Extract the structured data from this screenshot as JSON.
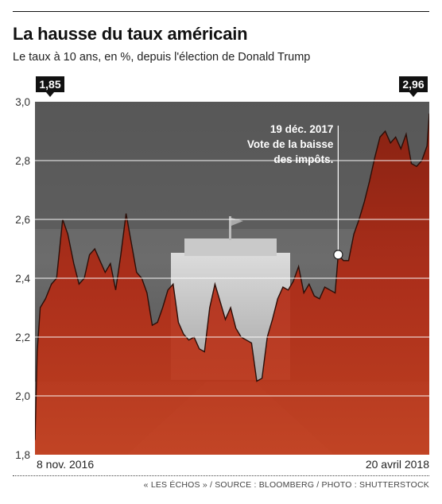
{
  "header": {
    "title": "La hausse du taux américain",
    "subtitle": "Le taux à 10 ans, en %, depuis l'élection de Donald Trump"
  },
  "credit": "« LES ÉCHOS » / SOURCE : BLOOMBERG / PHOTO : SHUTTERSTOCK",
  "colors": {
    "area": "#b22a14",
    "area_edge": "#2a0e08",
    "background_photo": "#5a5a5a",
    "grid": "#ffffff",
    "badge": "#111111"
  },
  "chart_data": {
    "type": "area",
    "title": "La hausse du taux américain",
    "subtitle": "Le taux à 10 ans, en %, depuis l'élection de Donald Trump",
    "xlabel": "",
    "ylabel": "",
    "x_start_label": "8 nov. 2016",
    "x_end_label": "20 avril 2018",
    "y_ticks": [
      "1,8",
      "2,0",
      "2,2",
      "2,4",
      "2,6",
      "2,8",
      "3,0"
    ],
    "ylim": [
      1.8,
      3.0
    ],
    "grid": true,
    "start_value_label": "1,85",
    "end_value_label": "2,96",
    "annotation": {
      "date": "19 déc. 2017",
      "line1": "Vote de la baisse",
      "line2": "des impôts.",
      "value": 2.48
    },
    "x": [
      "2016-11-08",
      "2016-11-11",
      "2016-11-15",
      "2016-11-22",
      "2016-11-30",
      "2016-12-07",
      "2016-12-15",
      "2016-12-22",
      "2016-12-30",
      "2017-01-06",
      "2017-01-13",
      "2017-01-20",
      "2017-01-27",
      "2017-02-03",
      "2017-02-10",
      "2017-02-17",
      "2017-02-24",
      "2017-03-03",
      "2017-03-10",
      "2017-03-17",
      "2017-03-24",
      "2017-03-31",
      "2017-04-07",
      "2017-04-14",
      "2017-04-21",
      "2017-04-28",
      "2017-05-05",
      "2017-05-12",
      "2017-05-19",
      "2017-05-26",
      "2017-06-02",
      "2017-06-09",
      "2017-06-16",
      "2017-06-23",
      "2017-06-30",
      "2017-07-07",
      "2017-07-14",
      "2017-07-21",
      "2017-07-28",
      "2017-08-04",
      "2017-08-11",
      "2017-08-18",
      "2017-08-25",
      "2017-09-01",
      "2017-09-08",
      "2017-09-15",
      "2017-09-22",
      "2017-09-29",
      "2017-10-06",
      "2017-10-13",
      "2017-10-20",
      "2017-10-27",
      "2017-11-03",
      "2017-11-10",
      "2017-11-17",
      "2017-11-24",
      "2017-12-01",
      "2017-12-08",
      "2017-12-15",
      "2017-12-19",
      "2017-12-26",
      "2018-01-02",
      "2018-01-09",
      "2018-01-16",
      "2018-01-23",
      "2018-01-30",
      "2018-02-06",
      "2018-02-13",
      "2018-02-20",
      "2018-02-27",
      "2018-03-06",
      "2018-03-13",
      "2018-03-20",
      "2018-03-27",
      "2018-04-03",
      "2018-04-10",
      "2018-04-17",
      "2018-04-20"
    ],
    "series": [
      {
        "values": [
          1.85,
          2.15,
          2.3,
          2.33,
          2.38,
          2.4,
          2.6,
          2.55,
          2.45,
          2.38,
          2.4,
          2.48,
          2.5,
          2.46,
          2.42,
          2.45,
          2.36,
          2.48,
          2.62,
          2.52,
          2.42,
          2.4,
          2.35,
          2.24,
          2.25,
          2.3,
          2.36,
          2.38,
          2.25,
          2.21,
          2.19,
          2.2,
          2.16,
          2.15,
          2.3,
          2.38,
          2.32,
          2.26,
          2.3,
          2.23,
          2.2,
          2.19,
          2.18,
          2.05,
          2.06,
          2.2,
          2.26,
          2.33,
          2.37,
          2.36,
          2.39,
          2.44,
          2.35,
          2.38,
          2.34,
          2.33,
          2.37,
          2.36,
          2.35,
          2.48,
          2.46,
          2.46,
          2.55,
          2.6,
          2.66,
          2.73,
          2.81,
          2.88,
          2.9,
          2.86,
          2.88,
          2.84,
          2.89,
          2.79,
          2.78,
          2.8,
          2.85,
          2.96
        ]
      }
    ]
  }
}
